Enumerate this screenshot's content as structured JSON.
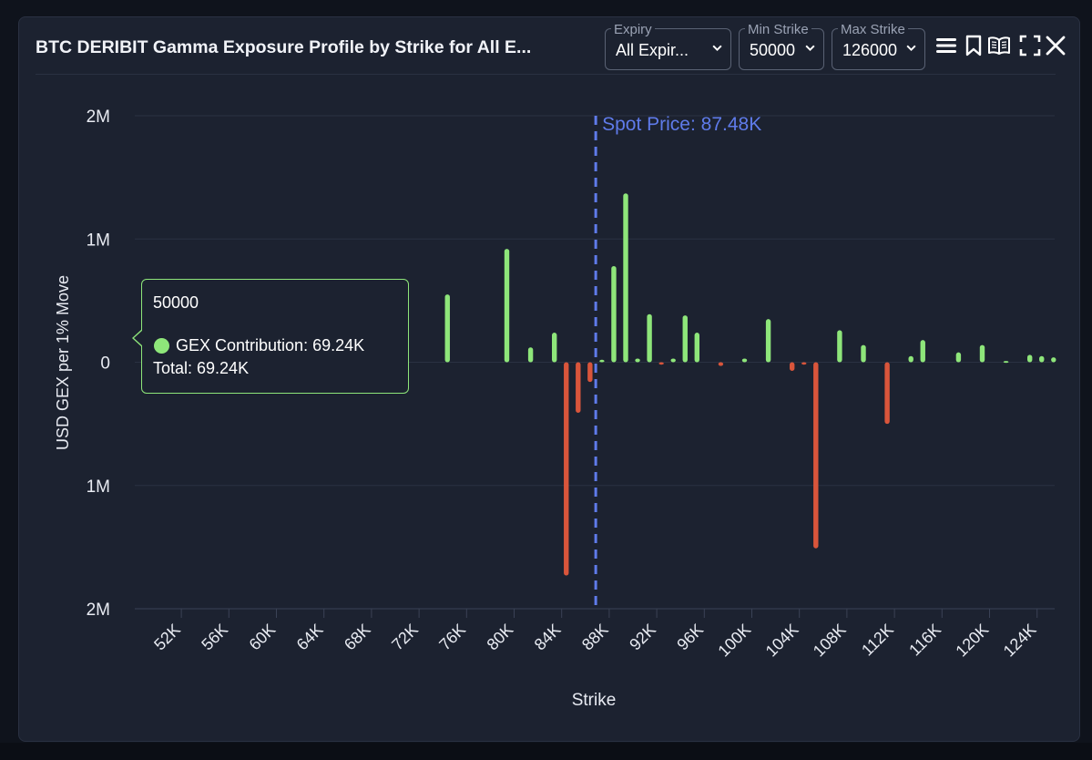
{
  "header": {
    "title": "BTC DERIBIT Gamma Exposure Profile by Strike for All E...",
    "expiry": {
      "label": "Expiry",
      "value": "All Expir..."
    },
    "min_strike": {
      "label": "Min Strike",
      "value": "50000"
    },
    "max_strike": {
      "label": "Max Strike",
      "value": "126000"
    },
    "icons": [
      "menu-icon",
      "bookmark-icon",
      "book-open-icon",
      "fullscreen-icon",
      "close-icon"
    ]
  },
  "colors": {
    "positive": "#8ee67a",
    "negative": "#d9553b",
    "spot_line": "#5f7bea",
    "grid": "#2a3142",
    "text": "#e8ebf2"
  },
  "tooltip": {
    "strike": "50000",
    "contribution": "GEX Contribution: 69.24K",
    "total": "Total: 69.24K"
  },
  "chart_data": {
    "type": "bar",
    "title": "BTC DERIBIT Gamma Exposure Profile by Strike for All E...",
    "xlabel": "Strike",
    "ylabel": "USD GEX per 1% Move",
    "xlim": [
      50000,
      128000
    ],
    "ylim": [
      -2000000,
      2000000
    ],
    "yticks": [
      {
        "value": 2000000,
        "label": "2M"
      },
      {
        "value": 1000000,
        "label": "1M"
      },
      {
        "value": 0,
        "label": "0"
      },
      {
        "value": -1000000,
        "label": "1M"
      },
      {
        "value": -2000000,
        "label": "2M"
      }
    ],
    "xticks": [
      {
        "value": 52000,
        "label": "52K"
      },
      {
        "value": 56000,
        "label": "56K"
      },
      {
        "value": 60000,
        "label": "60K"
      },
      {
        "value": 64000,
        "label": "64K"
      },
      {
        "value": 68000,
        "label": "68K"
      },
      {
        "value": 72000,
        "label": "72K"
      },
      {
        "value": 76000,
        "label": "76K"
      },
      {
        "value": 80000,
        "label": "80K"
      },
      {
        "value": 84000,
        "label": "84K"
      },
      {
        "value": 88000,
        "label": "88K"
      },
      {
        "value": 92000,
        "label": "92K"
      },
      {
        "value": 96000,
        "label": "96K"
      },
      {
        "value": 100000,
        "label": "100K"
      },
      {
        "value": 104000,
        "label": "104K"
      },
      {
        "value": 108000,
        "label": "108K"
      },
      {
        "value": 112000,
        "label": "112K"
      },
      {
        "value": 116000,
        "label": "116K"
      },
      {
        "value": 120000,
        "label": "120K"
      },
      {
        "value": 124000,
        "label": "124K"
      }
    ],
    "spot_price": {
      "value": 87480,
      "label": "Spot Price: 87.48K"
    },
    "series": [
      {
        "name": "GEX Contribution",
        "x": [
          50000,
          75000,
          80000,
          82000,
          84000,
          85000,
          86000,
          87000,
          88000,
          89000,
          90000,
          91000,
          92000,
          93000,
          94000,
          95000,
          96000,
          98000,
          100000,
          102000,
          104000,
          105000,
          106000,
          108000,
          110000,
          112000,
          114000,
          115000,
          118000,
          120000,
          122000,
          124000,
          125000,
          126000
        ],
        "values": [
          69240,
          550000,
          920000,
          120000,
          240000,
          -1730000,
          -410000,
          -160000,
          20000,
          780000,
          1370000,
          30000,
          390000,
          -20000,
          30000,
          380000,
          240000,
          -30000,
          30000,
          350000,
          -70000,
          -20000,
          -1510000,
          260000,
          140000,
          -500000,
          50000,
          180000,
          80000,
          140000,
          10000,
          60000,
          50000,
          40000
        ]
      }
    ]
  }
}
